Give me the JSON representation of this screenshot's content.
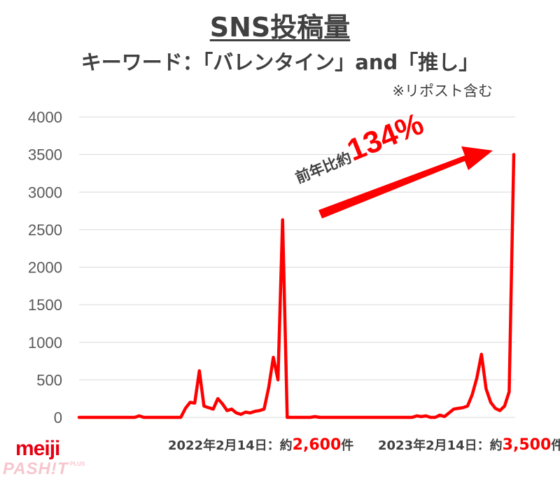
{
  "title": "SNS投稿量",
  "subtitle": "キーワード：「バレンタイン」and「推し」",
  "note": "※リポスト含む",
  "growth": {
    "label": "前年比約",
    "value": "134%"
  },
  "annotations": [
    {
      "prefix": "2022年2月14日：約",
      "value": "2,600",
      "suffix": "件"
    },
    {
      "prefix": "2023年2月14日：約",
      "value": "3,500",
      "suffix": "件"
    }
  ],
  "logo": {
    "brand": "meiji",
    "sub": "PASH!T",
    "plus": "PLUS"
  },
  "colors": {
    "line": "#ff0000",
    "text": "#404040",
    "grid": "#d9d9d9",
    "brand": "#e60012"
  },
  "chart_data": {
    "type": "line",
    "title": "SNS投稿量",
    "ylim": [
      0,
      4000
    ],
    "yticks": [
      0,
      500,
      1000,
      1500,
      2000,
      2500,
      3000,
      3500,
      4000
    ],
    "grid": true,
    "series": [
      {
        "values": [
          0,
          0,
          0,
          0,
          0,
          0,
          0,
          0,
          0,
          0,
          0,
          0,
          0,
          20,
          0,
          0,
          0,
          0,
          0,
          0,
          0,
          0,
          0,
          120,
          200,
          190,
          620,
          150,
          130,
          110,
          250,
          180,
          90,
          110,
          60,
          40,
          70,
          60,
          80,
          90,
          110,
          400,
          800,
          500,
          2630,
          0,
          0,
          0,
          0,
          0,
          0,
          10,
          0,
          0,
          0,
          0,
          0,
          0,
          0,
          0,
          0,
          0,
          0,
          0,
          0,
          0,
          0,
          0,
          0,
          0,
          0,
          0,
          0,
          20,
          10,
          20,
          0,
          0,
          30,
          10,
          60,
          110,
          120,
          130,
          150,
          300,
          520,
          840,
          380,
          200,
          120,
          90,
          150,
          340,
          3500
        ]
      }
    ]
  }
}
